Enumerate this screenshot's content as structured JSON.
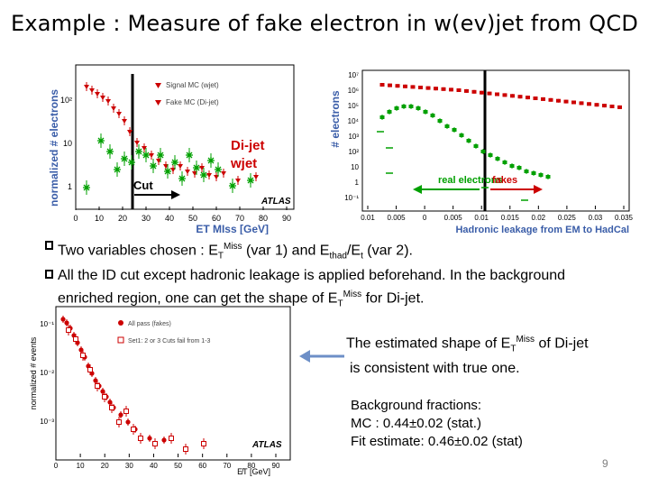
{
  "title": "Example  : Measure of fake electron in w(ev)jet from QCD",
  "plot_left": {
    "ylabel": "normalized # electrons",
    "xlabel": "ET MIss [GeV]",
    "xticks": [
      "0",
      "10",
      "20",
      "30",
      "40",
      "50",
      "60",
      "70",
      "80",
      "90"
    ],
    "yticks": [
      "10²",
      "10",
      "1"
    ],
    "legend": [
      "Signal MC (wjet)",
      "Fake MC (Di-jet)"
    ],
    "labels": {
      "dijet": "Di-jet",
      "wjet": "wjet",
      "cut": "Cut",
      "atlas": "ATLAS"
    },
    "colors": {
      "dijet": "#cc0000",
      "wjet": "#00a000"
    }
  },
  "plot_right": {
    "ylabel": "# electrons",
    "xlabel": "Hadronic leakage from EM to HadCal",
    "xticks": [
      "0.01",
      "0.005",
      "0",
      "0.005",
      "0.01",
      "0.015",
      "0.02",
      "0.025",
      "0.03",
      "0.035"
    ],
    "yticks": [
      "10⁷",
      "10⁶",
      "10⁵",
      "10⁴",
      "10³",
      "10²",
      "10",
      "1",
      "10⁻¹"
    ],
    "labels": {
      "real": "real electrons",
      "fakes": "fakes"
    }
  },
  "plot_bottom": {
    "ylabel": "normalized # events",
    "xlabel": "E̸T [GeV]",
    "xticks": [
      "0",
      "10",
      "20",
      "30",
      "40",
      "50",
      "60",
      "70",
      "80",
      "90"
    ],
    "yticks": [
      "10⁻¹",
      "10⁻²",
      "10⁻³"
    ],
    "legend": [
      "All pass (fakes)",
      "Set1: 2 or 3 Cuts fail from 1-3"
    ],
    "atlas": "ATLAS"
  },
  "bullets": {
    "b1_pre": "Two variables chosen :  E",
    "b1_sub1": "T",
    "b1_sup1": "Miss",
    "b1_mid": " (var 1)  and E",
    "b1_sub2": "thad",
    "b1_mid2": "/E",
    "b1_sub3": "t",
    "b1_post": " (var 2).",
    "b2_line1": "All the ID cut except hadronic leakage is applied beforehand. In the background",
    "b2_line2_pre": "enriched region,  one can get the shape of E",
    "b2_sub": "T",
    "b2_sup": "Miss",
    "b2_post": " for Di-jet."
  },
  "estimate": {
    "pre": "The estimated shape of E",
    "sub": "T",
    "sup": "Miss",
    "post": " of Di-jet",
    "line2": "is consistent with true one."
  },
  "background": {
    "line1": "Background fractions:",
    "line2": "MC : 0.44±0.02 (stat.)",
    "line3": "Fit estimate:  0.46±0.02 (stat)"
  },
  "page_number": "9",
  "colors": {
    "accent_blue": "#6d8fc7",
    "bullet": "#000000"
  }
}
